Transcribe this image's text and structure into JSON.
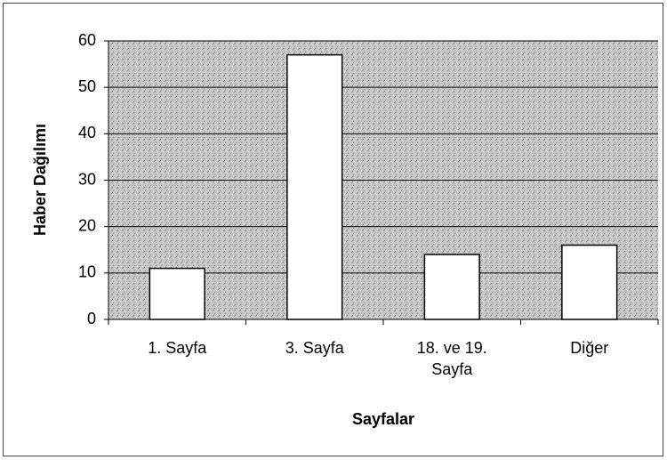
{
  "chart_data": {
    "type": "bar",
    "categories": [
      "1. Sayfa",
      "3. Sayfa",
      "18. ve 19. Sayfa",
      "Diğer"
    ],
    "values": [
      11,
      57,
      14,
      16
    ],
    "color": "#ffffff",
    "ylim": [
      0,
      60
    ],
    "yticks": [
      0,
      10,
      20,
      30,
      40,
      50,
      60
    ],
    "grid": true,
    "y_label": "Haber Dağılımı",
    "x_label": "Sayfalar"
  }
}
